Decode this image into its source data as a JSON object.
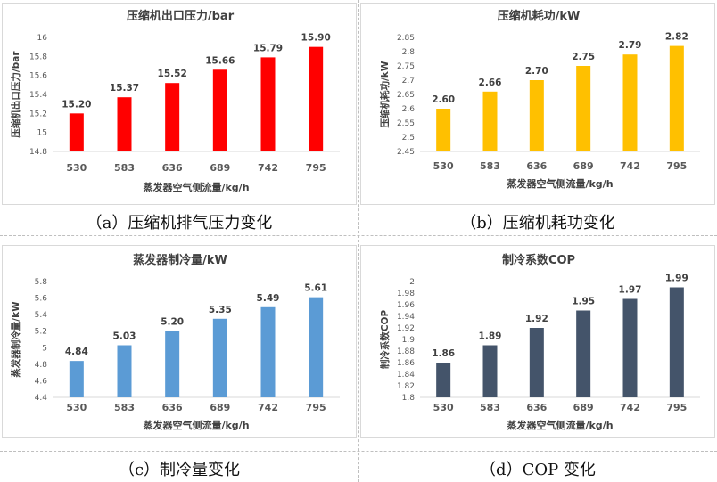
{
  "chart_data": [
    {
      "type": "bar",
      "title": "压缩机出口压力/bar",
      "xlabel": "蒸发器空气侧流量/kg/h",
      "ylabel": "压缩机出口压力/bar",
      "categories": [
        "530",
        "583",
        "636",
        "689",
        "742",
        "795"
      ],
      "values": [
        15.2,
        15.37,
        15.52,
        15.66,
        15.79,
        15.9
      ],
      "value_labels": [
        "15.20",
        "15.37",
        "15.52",
        "15.66",
        "15.79",
        "15.90"
      ],
      "ylim": [
        14.8,
        16
      ],
      "yticks": [
        "14.8",
        "15",
        "15.2",
        "15.4",
        "15.6",
        "15.8",
        "16"
      ],
      "grid": false,
      "color": "#ff0000",
      "caption": "（a）压缩机排气压力变化"
    },
    {
      "type": "bar",
      "title": "压缩机耗功/kW",
      "xlabel": "蒸发器空气侧流量/kg/h",
      "ylabel": "压缩机耗功/kW",
      "categories": [
        "530",
        "583",
        "636",
        "689",
        "742",
        "795"
      ],
      "values": [
        2.6,
        2.66,
        2.7,
        2.75,
        2.79,
        2.82
      ],
      "value_labels": [
        "2.60",
        "2.66",
        "2.70",
        "2.75",
        "2.79",
        "2.82"
      ],
      "ylim": [
        2.45,
        2.85
      ],
      "yticks": [
        "2.45",
        "2.5",
        "2.55",
        "2.6",
        "2.65",
        "2.7",
        "2.75",
        "2.8",
        "2.85"
      ],
      "grid": false,
      "color": "#ffc000",
      "caption": "（b）压缩机耗功变化"
    },
    {
      "type": "bar",
      "title": "蒸发器制冷量/kW",
      "xlabel": "蒸发器空气侧流量/kg/h",
      "ylabel": "蒸发器制冷量/kW",
      "categories": [
        "530",
        "583",
        "636",
        "689",
        "742",
        "795"
      ],
      "values": [
        4.84,
        5.03,
        5.2,
        5.35,
        5.49,
        5.61
      ],
      "value_labels": [
        "4.84",
        "5.03",
        "5.20",
        "5.35",
        "5.49",
        "5.61"
      ],
      "ylim": [
        4.4,
        5.8
      ],
      "yticks": [
        "4.4",
        "4.6",
        "4.8",
        "5",
        "5.2",
        "5.4",
        "5.6",
        "5.8"
      ],
      "grid": false,
      "color": "#5b9bd5",
      "caption": "（c）制冷量变化"
    },
    {
      "type": "bar",
      "title": "制冷系数COP",
      "xlabel": "蒸发器空气侧流量/kg/h",
      "ylabel": "制冷系数COP",
      "categories": [
        "530",
        "583",
        "636",
        "689",
        "742",
        "795"
      ],
      "values": [
        1.86,
        1.89,
        1.92,
        1.95,
        1.97,
        1.99
      ],
      "value_labels": [
        "1.86",
        "1.89",
        "1.92",
        "1.95",
        "1.97",
        "1.99"
      ],
      "ylim": [
        1.8,
        2.0
      ],
      "yticks": [
        "1.8",
        "1.82",
        "1.84",
        "1.86",
        "1.88",
        "1.9",
        "1.92",
        "1.94",
        "1.96",
        "1.98",
        "2"
      ],
      "grid": false,
      "color": "#44546a",
      "caption": "（d）COP 变化"
    }
  ]
}
